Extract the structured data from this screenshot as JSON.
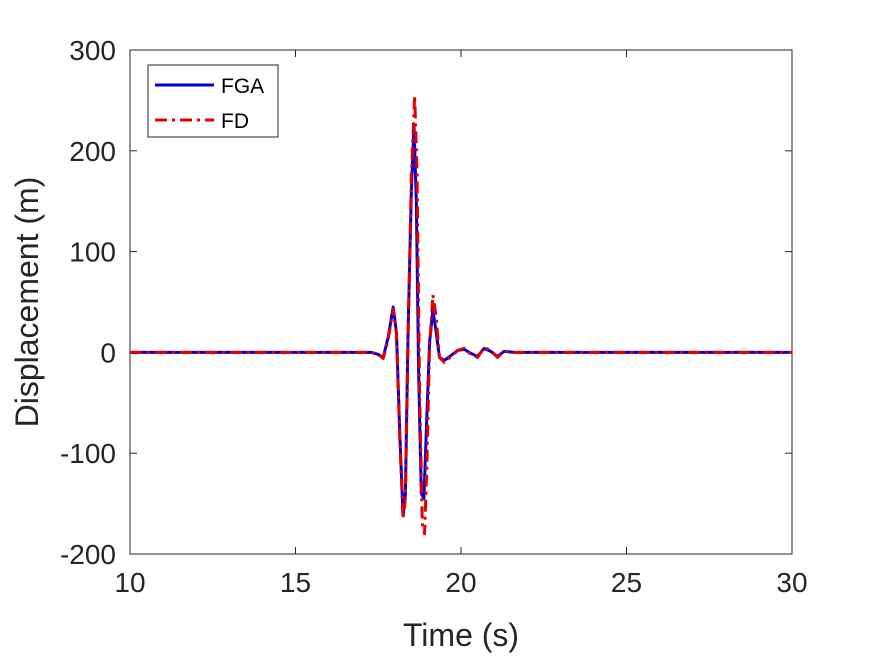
{
  "chart_data": {
    "type": "line",
    "title": "",
    "xlabel": "Time (s)",
    "ylabel": "Displacement (m)",
    "xlim": [
      10,
      30
    ],
    "ylim": [
      -200,
      300
    ],
    "xticks": [
      10,
      15,
      20,
      25,
      30
    ],
    "yticks": [
      -200,
      -100,
      0,
      100,
      200,
      300
    ],
    "grid": false,
    "legend_position": "top-left",
    "series": [
      {
        "name": "FGA",
        "color": "#0000dd",
        "style": "solid",
        "x": [
          10,
          17.0,
          17.3,
          17.5,
          17.65,
          17.8,
          17.95,
          18.05,
          18.15,
          18.25,
          18.32,
          18.4,
          18.5,
          18.58,
          18.65,
          18.72,
          18.8,
          18.88,
          18.95,
          19.05,
          19.15,
          19.25,
          19.35,
          19.5,
          19.7,
          19.9,
          20.1,
          20.3,
          20.5,
          20.7,
          20.9,
          21.1,
          21.3,
          21.6,
          22.0,
          30
        ],
        "y": [
          0,
          0,
          0,
          -2,
          -5,
          15,
          45,
          20,
          -80,
          -162,
          -140,
          20,
          160,
          225,
          150,
          -20,
          -140,
          -145,
          -80,
          10,
          42,
          20,
          -5,
          -8,
          -3,
          2,
          3,
          -1,
          -4,
          4,
          1,
          -4,
          1,
          0,
          0,
          0
        ]
      },
      {
        "name": "FD",
        "color": "#e00000",
        "style": "dashdot",
        "x": [
          10,
          17.0,
          17.3,
          17.5,
          17.65,
          17.8,
          17.95,
          18.05,
          18.15,
          18.25,
          18.32,
          18.4,
          18.5,
          18.6,
          18.67,
          18.75,
          18.83,
          18.9,
          18.97,
          19.05,
          19.15,
          19.25,
          19.35,
          19.5,
          19.7,
          19.9,
          20.1,
          20.3,
          20.5,
          20.7,
          20.9,
          21.1,
          21.3,
          21.6,
          22.0,
          30
        ],
        "y": [
          0,
          0,
          0,
          -2,
          -6,
          13,
          43,
          18,
          -85,
          -165,
          -145,
          10,
          175,
          255,
          180,
          -40,
          -170,
          -180,
          -110,
          5,
          57,
          35,
          -5,
          -10,
          -4,
          2,
          4,
          -2,
          -5,
          5,
          2,
          -5,
          1,
          0,
          0,
          0
        ]
      }
    ]
  }
}
